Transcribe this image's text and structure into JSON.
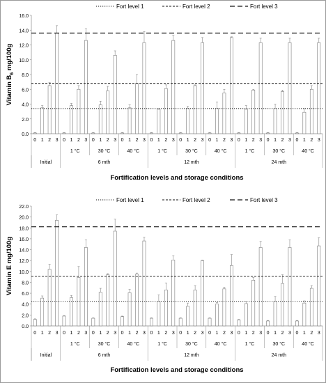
{
  "chart_data": [
    {
      "type": "bar",
      "title": "",
      "ylabel": "Vitamin B6 mg/100g",
      "ylabel_main": "Vitamin B",
      "ylabel_sub": "6",
      "ylabel_tail": " mg/100g",
      "xlabel": "Fortification levels and storage conditions",
      "ylim": [
        0,
        16
      ],
      "yticks": [
        "0.0",
        "2.0",
        "4.0",
        "6.0",
        "8.0",
        "10.0",
        "12.0",
        "14.0",
        "16.0"
      ],
      "grid": false,
      "legend_position": "top",
      "legend": [
        {
          "label": "Fort level 1",
          "style": "dotted",
          "value": 3.4
        },
        {
          "label": "Fort level 2",
          "style": "short-dash",
          "value": 6.8
        },
        {
          "label": "Fort level 3",
          "style": "long-dash",
          "value": 13.6
        }
      ],
      "level_ticks": [
        "0",
        "1",
        "2",
        "3"
      ],
      "groups": [
        {
          "time": "Initial",
          "temp": "",
          "values": [
            0.1,
            3.5,
            6.5,
            13.6
          ],
          "errors": [
            0.05,
            0.3,
            0.4,
            1.0
          ]
        },
        {
          "time": "6 mth",
          "temp": "1 °C",
          "values": [
            0.1,
            3.8,
            6.0,
            12.6
          ],
          "errors": [
            0.05,
            0.3,
            0.5,
            1.6
          ]
        },
        {
          "time": "6 mth",
          "temp": "30 °C",
          "values": [
            0.1,
            3.9,
            5.8,
            10.6
          ],
          "errors": [
            0.05,
            0.5,
            0.6,
            0.6
          ]
        },
        {
          "time": "6 mth",
          "temp": "40 °C",
          "values": [
            0.1,
            3.5,
            6.8,
            12.3
          ],
          "errors": [
            0.05,
            0.4,
            1.2,
            1.5
          ]
        },
        {
          "time": "12 mth",
          "temp": "1 °C",
          "values": [
            0.1,
            3.3,
            6.1,
            12.6
          ],
          "errors": [
            0.05,
            0.1,
            0.5,
            0.7
          ]
        },
        {
          "time": "12 mth",
          "temp": "30 °C",
          "values": [
            0.1,
            3.4,
            6.5,
            12.3
          ],
          "errors": [
            0.05,
            0.3,
            0.1,
            0.7
          ]
        },
        {
          "time": "12 mth",
          "temp": "40 °C",
          "values": [
            0.1,
            3.4,
            5.5,
            13.0
          ],
          "errors": [
            0.05,
            0.9,
            0.5,
            0.1
          ]
        },
        {
          "time": "24 mth",
          "temp": "1 °C",
          "values": [
            0.1,
            3.3,
            5.9,
            12.3
          ],
          "errors": [
            0.05,
            0.5,
            0.1,
            0.6
          ]
        },
        {
          "time": "24 mth",
          "temp": "30 °C",
          "values": [
            0.1,
            3.4,
            5.7,
            12.3
          ],
          "errors": [
            0.05,
            0.6,
            0.2,
            0.6
          ]
        },
        {
          "time": "24 mth",
          "temp": "40 °C",
          "values": [
            0.1,
            2.9,
            6.0,
            12.3
          ],
          "errors": [
            0.05,
            0.5,
            0.5,
            0.6
          ]
        }
      ],
      "time_labels": [
        "Initial",
        "6 mth",
        "12 mth",
        "24 mth"
      ]
    },
    {
      "type": "bar",
      "title": "",
      "ylabel": "Vitamin E mg/100g",
      "ylabel_main": "Vitamin E mg/100g",
      "ylabel_sub": "",
      "ylabel_tail": "",
      "xlabel": "Fortification levels and storage conditions",
      "ylim": [
        0,
        22
      ],
      "yticks": [
        "0.0",
        "2.0",
        "4.0",
        "6.0",
        "8.0",
        "10.0",
        "12.0",
        "14.0",
        "16.0",
        "18.0",
        "20.0",
        "22.0"
      ],
      "grid": false,
      "legend_position": "top",
      "legend": [
        {
          "label": "Fort level 1",
          "style": "dotted",
          "value": 4.5
        },
        {
          "label": "Fort level 2",
          "style": "short-dash",
          "value": 9.1
        },
        {
          "label": "Fort level 3",
          "style": "long-dash",
          "value": 18.2
        }
      ],
      "level_ticks": [
        "0",
        "1",
        "2",
        "3"
      ],
      "groups": [
        {
          "time": "Initial",
          "temp": "",
          "values": [
            1.2,
            5.1,
            10.4,
            19.4
          ],
          "errors": [
            0.1,
            0.4,
            0.9,
            1.0
          ]
        },
        {
          "time": "6 mth",
          "temp": "1 °C",
          "values": [
            1.8,
            5.2,
            8.9,
            14.4
          ],
          "errors": [
            0.1,
            0.4,
            2.0,
            1.4
          ]
        },
        {
          "time": "6 mth",
          "temp": "30 °C",
          "values": [
            1.4,
            6.2,
            9.4,
            17.4
          ],
          "errors": [
            0.1,
            0.7,
            0.2,
            2.2
          ]
        },
        {
          "time": "6 mth",
          "temp": "40 °C",
          "values": [
            1.7,
            6.1,
            9.5,
            15.6
          ],
          "errors": [
            0.1,
            0.6,
            0.2,
            0.7
          ]
        },
        {
          "time": "12 mth",
          "temp": "1 °C",
          "values": [
            1.4,
            4.5,
            6.6,
            12.1
          ],
          "errors": [
            0.1,
            1.2,
            1.3,
            0.8
          ]
        },
        {
          "time": "12 mth",
          "temp": "30 °C",
          "values": [
            1.4,
            3.6,
            6.6,
            12.0
          ],
          "errors": [
            0.1,
            0.6,
            0.8,
            0.1
          ]
        },
        {
          "time": "12 mth",
          "temp": "40 °C",
          "values": [
            1.4,
            4.0,
            6.8,
            11.1
          ],
          "errors": [
            0.1,
            0.3,
            0.3,
            2.0
          ]
        },
        {
          "time": "24 mth",
          "temp": "1 °C",
          "values": [
            1.1,
            4.1,
            8.4,
            14.4
          ],
          "errors": [
            0.1,
            0.3,
            0.5,
            1.1
          ]
        },
        {
          "time": "24 mth",
          "temp": "30 °C",
          "values": [
            0.9,
            4.5,
            7.8,
            14.4
          ],
          "errors": [
            0.1,
            0.9,
            1.6,
            1.4
          ]
        },
        {
          "time": "24 mth",
          "temp": "40 °C",
          "values": [
            0.9,
            4.2,
            6.9,
            14.7
          ],
          "errors": [
            0.1,
            0.4,
            0.5,
            1.5
          ]
        }
      ],
      "time_labels": [
        "Initial",
        "6 mth",
        "12 mth",
        "24 mth"
      ]
    }
  ]
}
